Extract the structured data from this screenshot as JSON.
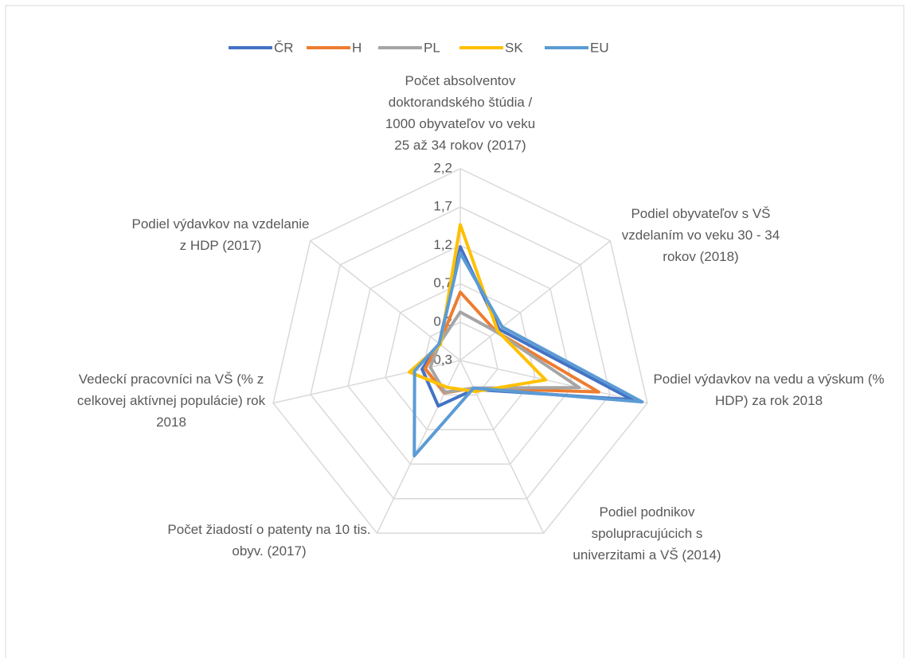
{
  "chart_data": {
    "type": "radar",
    "categories": [
      "Počet absolventov doktorandského štúdia / 1000 obyvateľov vo veku 25 až 34 rokov (2017)",
      "Podiel obyvateľov s VŠ vzdelaním vo veku 30 - 34 rokov  (2018)",
      "Podiel výdavkov na vedu a výskum (% HDP) za rok 2018",
      "Podiel podnikov spolupracujúcich s univerzitami a VŠ (2014)",
      "Počet žiadostí o patenty na 10 tis. obyv. (2017)",
      "Vedeckí pracovníci na VŠ (% z celkovej aktívnej populácie) rok 2018",
      "Podiel výdavkov na vzdelanie z HDP (2017)"
    ],
    "series": [
      {
        "name": "ČR",
        "color": "#4472c4",
        "values": [
          1.18,
          0.35,
          2.0,
          0.12,
          0.36,
          0.21,
          0.05
        ]
      },
      {
        "name": "H",
        "color": "#ed7d31",
        "values": [
          0.59,
          0.3,
          1.55,
          0.1,
          0.17,
          0.17,
          0.05
        ]
      },
      {
        "name": "PL",
        "color": "#a5a5a5",
        "values": [
          0.33,
          0.3,
          1.29,
          0.1,
          0.16,
          0.1,
          0.05
        ]
      },
      {
        "name": "SK",
        "color": "#ffc000",
        "values": [
          1.47,
          0.32,
          0.84,
          0.15,
          0.09,
          0.38,
          0.03
        ]
      },
      {
        "name": "EU",
        "color": "#5b9bd5",
        "values": [
          1.1,
          0.4,
          2.13,
          0.1,
          1.08,
          0.31,
          0.05
        ]
      }
    ],
    "ylim": [
      -0.3,
      2.2
    ],
    "yticks": [
      {
        "value": -0.3,
        "label": "-0,3"
      },
      {
        "value": 0.2,
        "label": "0,2"
      },
      {
        "value": 0.7,
        "label": "0,7"
      },
      {
        "value": 1.2,
        "label": "1,2"
      },
      {
        "value": 1.7,
        "label": "1,7"
      },
      {
        "value": 2.2,
        "label": "2,2"
      }
    ],
    "grid": true,
    "legend": "top"
  }
}
